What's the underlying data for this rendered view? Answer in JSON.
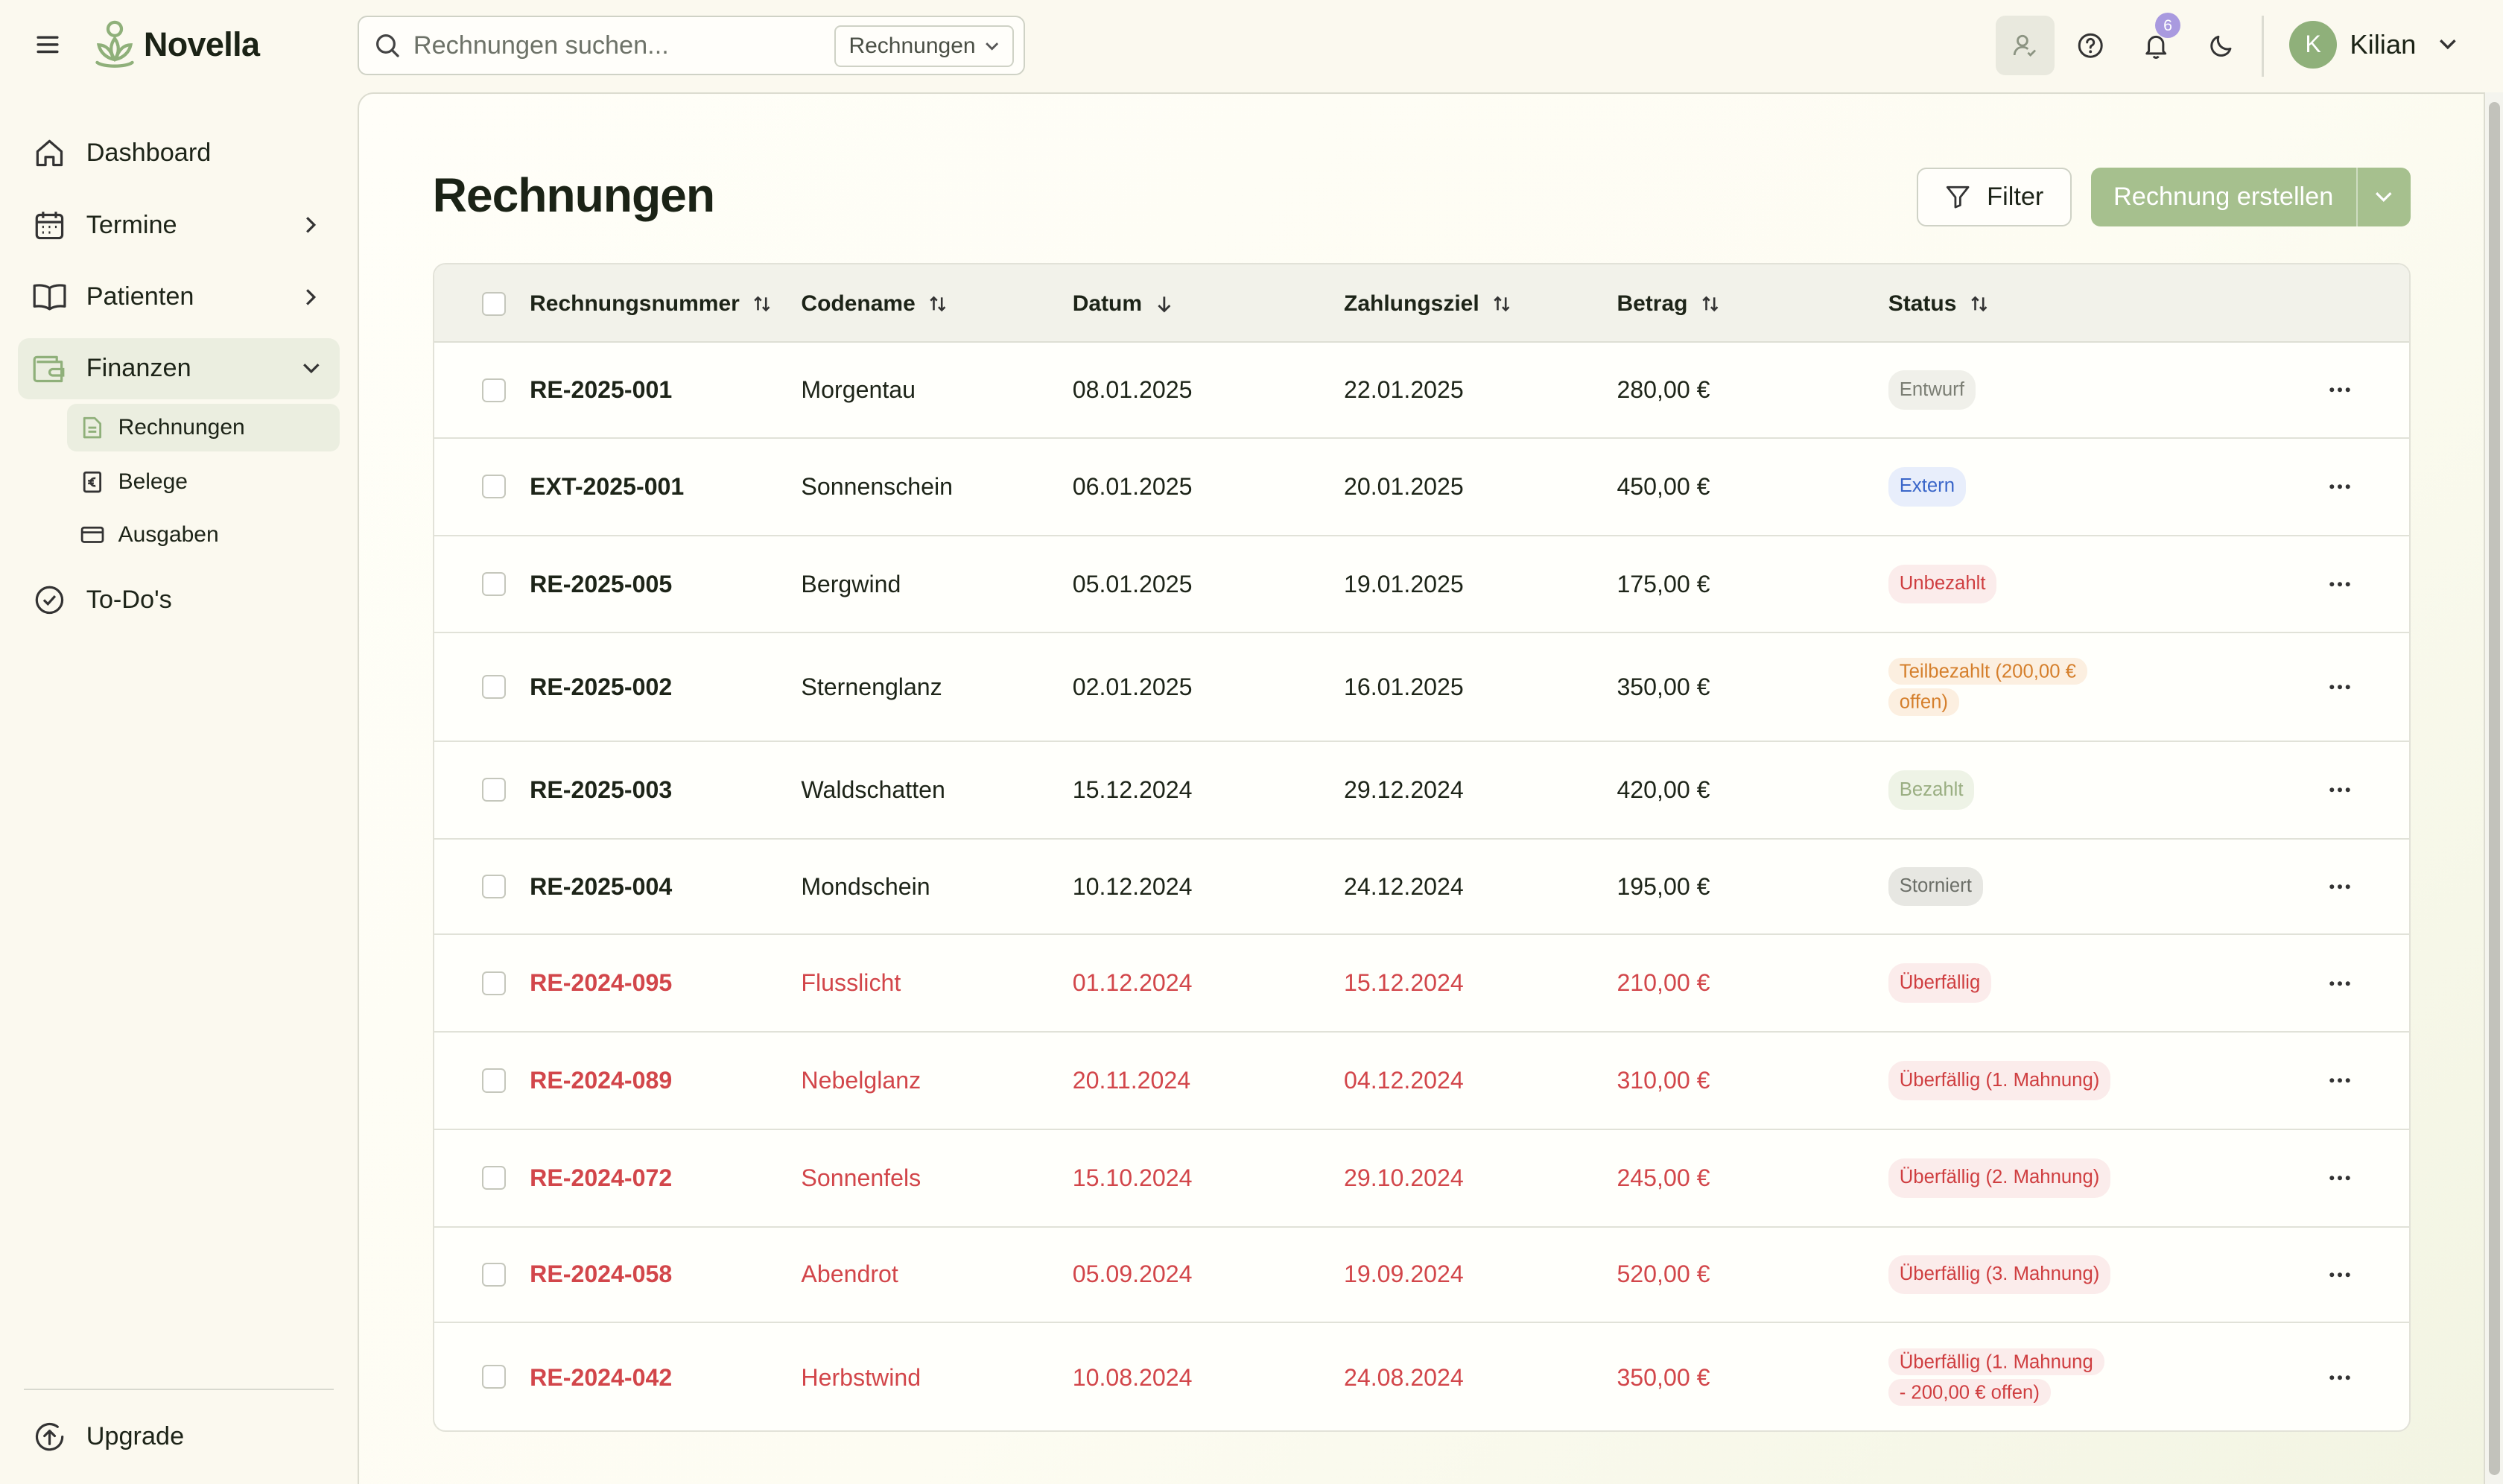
{
  "app": {
    "name": "Novella"
  },
  "search": {
    "placeholder": "Rechnungen suchen...",
    "scope": "Rechnungen"
  },
  "notifications": {
    "count": "6"
  },
  "user": {
    "initial": "K",
    "name": "Kilian"
  },
  "sidebar": {
    "items": [
      {
        "label": "Dashboard",
        "icon": "home-icon"
      },
      {
        "label": "Termine",
        "icon": "calendar-icon"
      },
      {
        "label": "Patienten",
        "icon": "book-icon"
      },
      {
        "label": "Finanzen",
        "icon": "wallet-icon"
      },
      {
        "label": "To-Do's",
        "icon": "check-circle-icon"
      }
    ],
    "sub": [
      {
        "label": "Rechnungen",
        "icon": "document-icon"
      },
      {
        "label": "Belege",
        "icon": "euro-receipt-icon"
      },
      {
        "label": "Ausgaben",
        "icon": "card-icon"
      }
    ],
    "upgrade": "Upgrade"
  },
  "page": {
    "title": "Rechnungen",
    "filter_label": "Filter",
    "create_label": "Rechnung erstellen"
  },
  "table": {
    "columns": [
      "Rechnungsnummer",
      "Codename",
      "Datum",
      "Zahlungsziel",
      "Betrag",
      "Status"
    ],
    "rows": [
      {
        "nr": "RE-2025-001",
        "code": "Morgentau",
        "date": "08.01.2025",
        "due": "22.01.2025",
        "amount": "280,00 €",
        "status": "Entwurf"
      },
      {
        "nr": "EXT-2025-001",
        "code": "Sonnenschein",
        "date": "06.01.2025",
        "due": "20.01.2025",
        "amount": "450,00 €",
        "status": "Extern"
      },
      {
        "nr": "RE-2025-005",
        "code": "Bergwind",
        "date": "05.01.2025",
        "due": "19.01.2025",
        "amount": "175,00 €",
        "status": "Unbezahlt"
      },
      {
        "nr": "RE-2025-002",
        "code": "Sternenglanz",
        "date": "02.01.2025",
        "due": "16.01.2025",
        "amount": "350,00 €",
        "status": "Teilbezahlt (200,00 € offen)"
      },
      {
        "nr": "RE-2025-003",
        "code": "Waldschatten",
        "date": "15.12.2024",
        "due": "29.12.2024",
        "amount": "420,00 €",
        "status": "Bezahlt"
      },
      {
        "nr": "RE-2025-004",
        "code": "Mondschein",
        "date": "10.12.2024",
        "due": "24.12.2024",
        "amount": "195,00 €",
        "status": "Storniert"
      },
      {
        "nr": "RE-2024-095",
        "code": "Flusslicht",
        "date": "01.12.2024",
        "due": "15.12.2024",
        "amount": "210,00 €",
        "status": "Überfällig"
      },
      {
        "nr": "RE-2024-089",
        "code": "Nebelglanz",
        "date": "20.11.2024",
        "due": "04.12.2024",
        "amount": "310,00 €",
        "status": "Überfällig (1. Mahnung)"
      },
      {
        "nr": "RE-2024-072",
        "code": "Sonnenfels",
        "date": "15.10.2024",
        "due": "29.10.2024",
        "amount": "245,00 €",
        "status": "Überfällig (2. Mahnung)"
      },
      {
        "nr": "RE-2024-058",
        "code": "Abendrot",
        "date": "05.09.2024",
        "due": "19.09.2024",
        "amount": "520,00 €",
        "status": "Überfällig (3. Mahnung)"
      },
      {
        "nr": "RE-2024-042",
        "code": "Herbstwind",
        "date": "10.08.2024",
        "due": "24.08.2024",
        "amount": "350,00 €",
        "status": "Überfällig (1. Mahnung - 200,00 € offen)"
      }
    ]
  },
  "colors": {
    "accent": "#a6c08e",
    "overdue": "#d2464a",
    "background": "#fbf9ef"
  }
}
